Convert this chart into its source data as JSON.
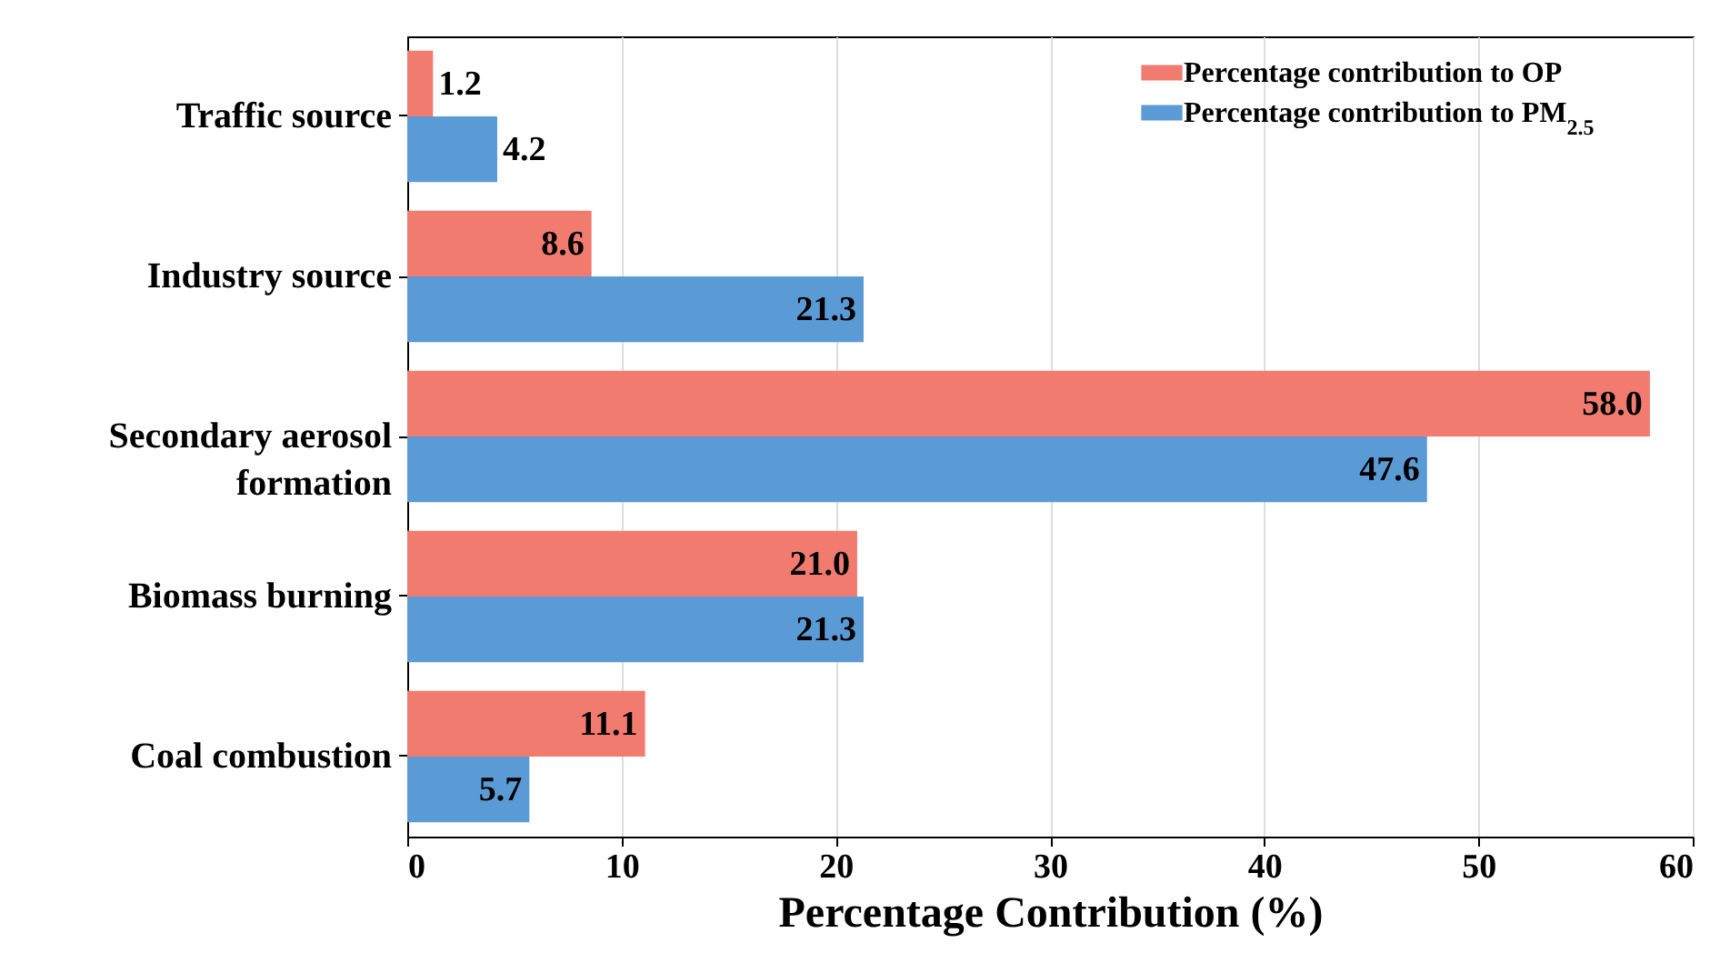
{
  "chart_data": {
    "type": "bar",
    "orientation": "horizontal",
    "xlabel": "Percentage Contribution (%)",
    "categories": [
      "Traffic source",
      "Industry source",
      "Secondary aerosol formation",
      "Biomass burning",
      "Coal combustion"
    ],
    "series": [
      {
        "name": "Percentage contribution to OP",
        "color": "#f07b6e",
        "values": [
          1.2,
          8.6,
          58.0,
          21.0,
          11.1
        ],
        "value_labels": [
          "1.2",
          "8.6",
          "58.0",
          "21.0",
          "11.1"
        ]
      },
      {
        "name": "Percentage contribution to PM$_{2.5}$",
        "color": "#5b9bd5",
        "values": [
          4.2,
          21.3,
          47.6,
          21.3,
          5.7
        ],
        "value_labels": [
          "4.2",
          "21.3",
          "47.6",
          "21.3",
          "5.7"
        ]
      }
    ],
    "xlim": [
      0,
      60
    ],
    "xticks": [
      0,
      10,
      20,
      30,
      40,
      50,
      60
    ],
    "grid": "x",
    "legend": "top right"
  }
}
